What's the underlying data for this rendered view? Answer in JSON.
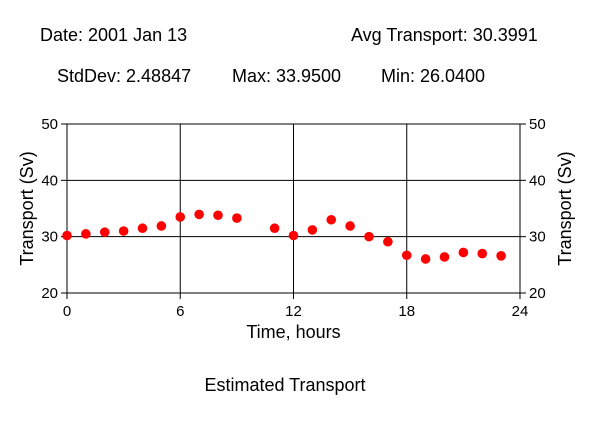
{
  "header": {
    "date": "Date: 2001 Jan 13",
    "avg": "Avg Transport: 30.3991",
    "stddev": "StdDev: 2.48847",
    "max": "Max: 33.9500",
    "min": "Min: 26.0400"
  },
  "caption": "Estimated Transport",
  "chart_data": {
    "type": "scatter",
    "xlabel": "Time, hours",
    "ylabel": "Transport (Sv)",
    "xlim": [
      0,
      24
    ],
    "ylim": [
      20,
      50
    ],
    "xticks": [
      0,
      6,
      12,
      18,
      24
    ],
    "yticks": [
      20,
      30,
      40,
      50
    ],
    "grid": true,
    "marker_color": "#ff0000",
    "points": [
      [
        0,
        30.2
      ],
      [
        1,
        30.5
      ],
      [
        2,
        30.8
      ],
      [
        3,
        31.0
      ],
      [
        4,
        31.5
      ],
      [
        5,
        31.9
      ],
      [
        6,
        33.5
      ],
      [
        7,
        33.95
      ],
      [
        8,
        33.8
      ],
      [
        9,
        33.3
      ],
      [
        11,
        31.5
      ],
      [
        12,
        30.2
      ],
      [
        13,
        31.2
      ],
      [
        14,
        33.0
      ],
      [
        15,
        31.9
      ],
      [
        16,
        30.0
      ],
      [
        17,
        29.1
      ],
      [
        18,
        26.7
      ],
      [
        19,
        26.04
      ],
      [
        20,
        26.4
      ],
      [
        21,
        27.2
      ],
      [
        22,
        27.0
      ],
      [
        23,
        26.6
      ]
    ]
  }
}
